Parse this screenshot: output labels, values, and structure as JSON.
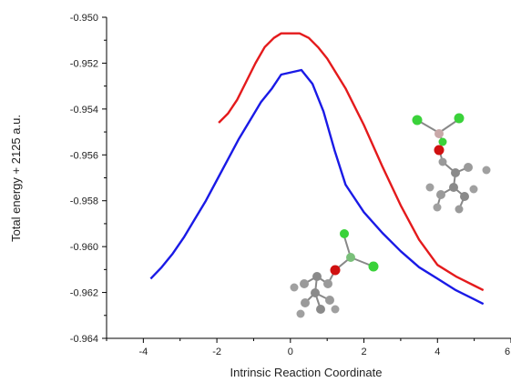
{
  "chart_data": {
    "type": "line",
    "title": "",
    "xlabel": "Intrinsic Reaction Coordinate",
    "ylabel": "Total energy + 2125 a.u.",
    "xlim": [
      -5,
      6
    ],
    "ylim": [
      -0.964,
      -0.95
    ],
    "x_ticks": [
      -4,
      -2,
      0,
      2,
      4,
      6
    ],
    "x_tick_labels": [
      "-4",
      "-2",
      "0",
      "2",
      "4",
      "6"
    ],
    "y_ticks": [
      -0.964,
      -0.962,
      -0.96,
      -0.958,
      -0.956,
      -0.954,
      -0.952,
      -0.95
    ],
    "y_tick_labels": [
      "-0.964",
      "-0.962",
      "-0.960",
      "-0.958",
      "-0.956",
      "-0.954",
      "-0.952",
      "-0.950"
    ],
    "grid": false,
    "legend": "none",
    "series": [
      {
        "color": "#e41a1c",
        "x": [
          -1.95,
          -1.7,
          -1.45,
          -1.2,
          -0.95,
          -0.7,
          -0.45,
          -0.25,
          0.25,
          0.5,
          0.75,
          1.0,
          1.5,
          2.0,
          2.5,
          3.0,
          3.5,
          4.0,
          4.5,
          5.0,
          5.25
        ],
        "y": [
          -0.9546,
          -0.9542,
          -0.9536,
          -0.9528,
          -0.952,
          -0.9513,
          -0.9509,
          -0.9507,
          -0.9507,
          -0.9509,
          -0.9513,
          -0.9518,
          -0.9531,
          -0.9547,
          -0.9565,
          -0.9582,
          -0.9597,
          -0.9608,
          -0.9613,
          -0.9617,
          -0.9619
        ]
      },
      {
        "color": "#1a1ae6",
        "x": [
          -3.8,
          -3.5,
          -3.2,
          -2.9,
          -2.6,
          -2.3,
          -2.0,
          -1.7,
          -1.4,
          -1.1,
          -0.8,
          -0.5,
          -0.25,
          0.3,
          0.6,
          0.9,
          1.2,
          1.5,
          2.0,
          2.5,
          3.0,
          3.5,
          4.0,
          4.5,
          5.0,
          5.25
        ],
        "y": [
          -0.9614,
          -0.9609,
          -0.9603,
          -0.9596,
          -0.9588,
          -0.958,
          -0.9571,
          -0.9562,
          -0.9553,
          -0.9545,
          -0.9537,
          -0.9531,
          -0.9525,
          -0.9523,
          -0.9529,
          -0.9541,
          -0.9558,
          -0.9573,
          -0.9585,
          -0.9594,
          -0.9602,
          -0.9609,
          -0.9614,
          -0.9619,
          -0.9623,
          -0.9625
        ]
      }
    ]
  }
}
